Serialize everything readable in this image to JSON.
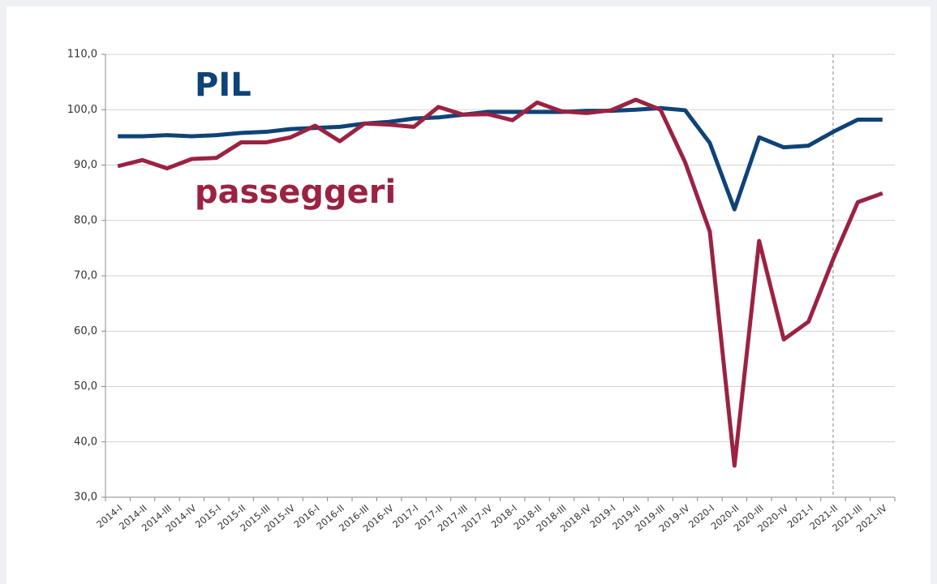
{
  "chart_data": {
    "type": "line",
    "categories": [
      "2014-I",
      "2014-II",
      "2014-III",
      "2014-IV",
      "2015-I",
      "2015-II",
      "2015-III",
      "2015-IV",
      "2016-I",
      "2016-II",
      "2016-III",
      "2016-IV",
      "2017-I",
      "2017-II",
      "2017-III",
      "2017-IV",
      "2018-I",
      "2018-II",
      "2018-III",
      "2018-IV",
      "2019-I",
      "2019-II",
      "2019-III",
      "2019-IV",
      "2020-I",
      "2020-II",
      "2020-III",
      "2020-IV",
      "2021-I",
      "2021-II",
      "2021-III",
      "2021-IV"
    ],
    "series": [
      {
        "name": "PIL",
        "color": "#0e4378",
        "values": [
          95.2,
          95.2,
          95.4,
          95.2,
          95.4,
          95.8,
          96.0,
          96.5,
          96.7,
          96.9,
          97.5,
          97.8,
          98.4,
          98.6,
          99.1,
          99.6,
          99.6,
          99.6,
          99.6,
          99.8,
          99.8,
          100.0,
          100.3,
          99.9,
          94.0,
          82.0,
          95.0,
          93.2,
          93.5,
          96.0,
          98.2,
          98.2
        ]
      },
      {
        "name": "passeggeri",
        "color": "#9b2242",
        "values": [
          89.8,
          90.9,
          89.4,
          91.1,
          91.3,
          94.1,
          94.1,
          95.0,
          97.1,
          94.3,
          97.5,
          97.3,
          96.9,
          100.5,
          99.1,
          99.2,
          98.1,
          101.3,
          99.7,
          99.4,
          99.9,
          101.8,
          100.0,
          90.5,
          78.0,
          35.7,
          76.3,
          58.5,
          61.7,
          73.0,
          83.3,
          84.9
        ]
      }
    ],
    "ylim": [
      30,
      110
    ],
    "yticks": [
      {
        "value": 30,
        "label": "30,0"
      },
      {
        "value": 40,
        "label": "40,0"
      },
      {
        "value": 50,
        "label": "50,0"
      },
      {
        "value": 60,
        "label": "60,0"
      },
      {
        "value": 70,
        "label": "70,0"
      },
      {
        "value": 80,
        "label": "80,0"
      },
      {
        "value": 90,
        "label": "90,0"
      },
      {
        "value": 100,
        "label": "100,0"
      },
      {
        "value": 110,
        "label": "110,0"
      }
    ],
    "grid": true,
    "vline": "2021-II"
  }
}
